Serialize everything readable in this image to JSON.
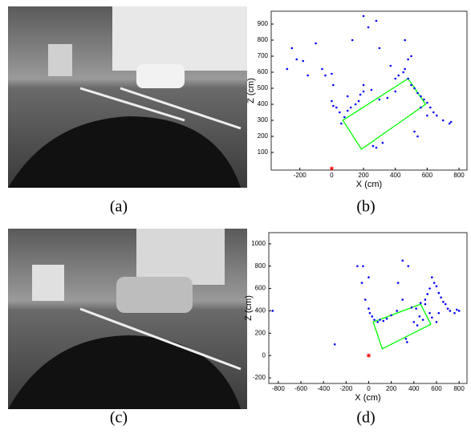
{
  "chart_data": [
    {
      "type": "scatter",
      "xlabel": "X (cm)",
      "ylabel": "Z (cm)",
      "xlim": [
        -380,
        850
      ],
      "ylim": [
        -10,
        980
      ],
      "xticks": [
        -200,
        0,
        200,
        400,
        600,
        800
      ],
      "yticks": [
        100,
        200,
        300,
        400,
        500,
        600,
        700,
        800,
        900
      ],
      "series": [
        {
          "color": "#0000ff",
          "x": [
            -250,
            -220,
            -180,
            -280,
            -100,
            -60,
            -40,
            0,
            -150,
            10,
            0,
            10,
            30,
            50,
            60,
            80,
            100,
            120,
            150,
            170,
            200,
            250,
            100,
            300,
            350,
            400,
            130,
            200,
            230,
            280,
            300,
            370,
            400,
            420,
            450,
            460,
            480,
            500,
            520,
            540,
            560,
            580,
            600,
            620,
            640,
            660,
            700,
            740,
            750,
            500,
            460,
            480,
            260,
            280,
            320,
            520,
            540,
            200,
            180,
            560,
            600
          ],
          "values": [
            750,
            680,
            670,
            620,
            780,
            620,
            580,
            590,
            580,
            520,
            420,
            390,
            380,
            350,
            280,
            320,
            360,
            380,
            400,
            420,
            480,
            490,
            450,
            430,
            440,
            480,
            800,
            950,
            880,
            920,
            750,
            640,
            560,
            580,
            600,
            620,
            560,
            520,
            500,
            470,
            450,
            430,
            410,
            380,
            350,
            330,
            300,
            280,
            290,
            700,
            800,
            680,
            140,
            130,
            160,
            230,
            200,
            520,
            460,
            380,
            330
          ]
        },
        {
          "color": "#ff0000",
          "x": [
            0
          ],
          "values": [
            0
          ]
        }
      ],
      "box": {
        "color": "#00ff00",
        "x": [
          187,
          70,
          480,
          590
        ],
        "values": [
          120,
          300,
          560,
          400
        ]
      }
    },
    {
      "type": "scatter",
      "xlabel": "X (cm)",
      "ylabel": "Z (cm)",
      "xlim": [
        -884,
        870
      ],
      "ylim": [
        -250,
        1100
      ],
      "xticks": [
        -800,
        -600,
        -400,
        -200,
        0,
        200,
        400,
        600,
        800
      ],
      "yticks": [
        -200,
        0,
        200,
        400,
        600,
        800,
        1000
      ],
      "series": [
        {
          "color": "#0000ff",
          "x": [
            -850,
            -300,
            -100,
            -50,
            0,
            -60,
            -30,
            0,
            10,
            30,
            50,
            80,
            100,
            130,
            160,
            200,
            250,
            300,
            350,
            300,
            380,
            420,
            460,
            500,
            520,
            540,
            560,
            580,
            600,
            620,
            640,
            660,
            680,
            700,
            720,
            760,
            780,
            800,
            540,
            560,
            500,
            450,
            400,
            330,
            340,
            600,
            620,
            480,
            430,
            260
          ],
          "values": [
            400,
            100,
            800,
            800,
            700,
            650,
            500,
            420,
            380,
            350,
            320,
            300,
            320,
            310,
            330,
            360,
            400,
            500,
            800,
            850,
            430,
            420,
            470,
            500,
            550,
            600,
            700,
            650,
            620,
            560,
            520,
            480,
            460,
            420,
            400,
            380,
            410,
            400,
            380,
            340,
            460,
            350,
            300,
            150,
            120,
            300,
            380,
            320,
            270,
            650
          ]
        },
        {
          "color": "#ff0000",
          "x": [
            0
          ],
          "values": [
            0
          ]
        }
      ],
      "box": {
        "color": "#00ff00",
        "x": [
          120,
          40,
          460,
          550
        ],
        "values": [
          60,
          300,
          460,
          280
        ]
      }
    }
  ],
  "captions": [
    "(a)",
    "(b)",
    "(c)",
    "(d)"
  ]
}
